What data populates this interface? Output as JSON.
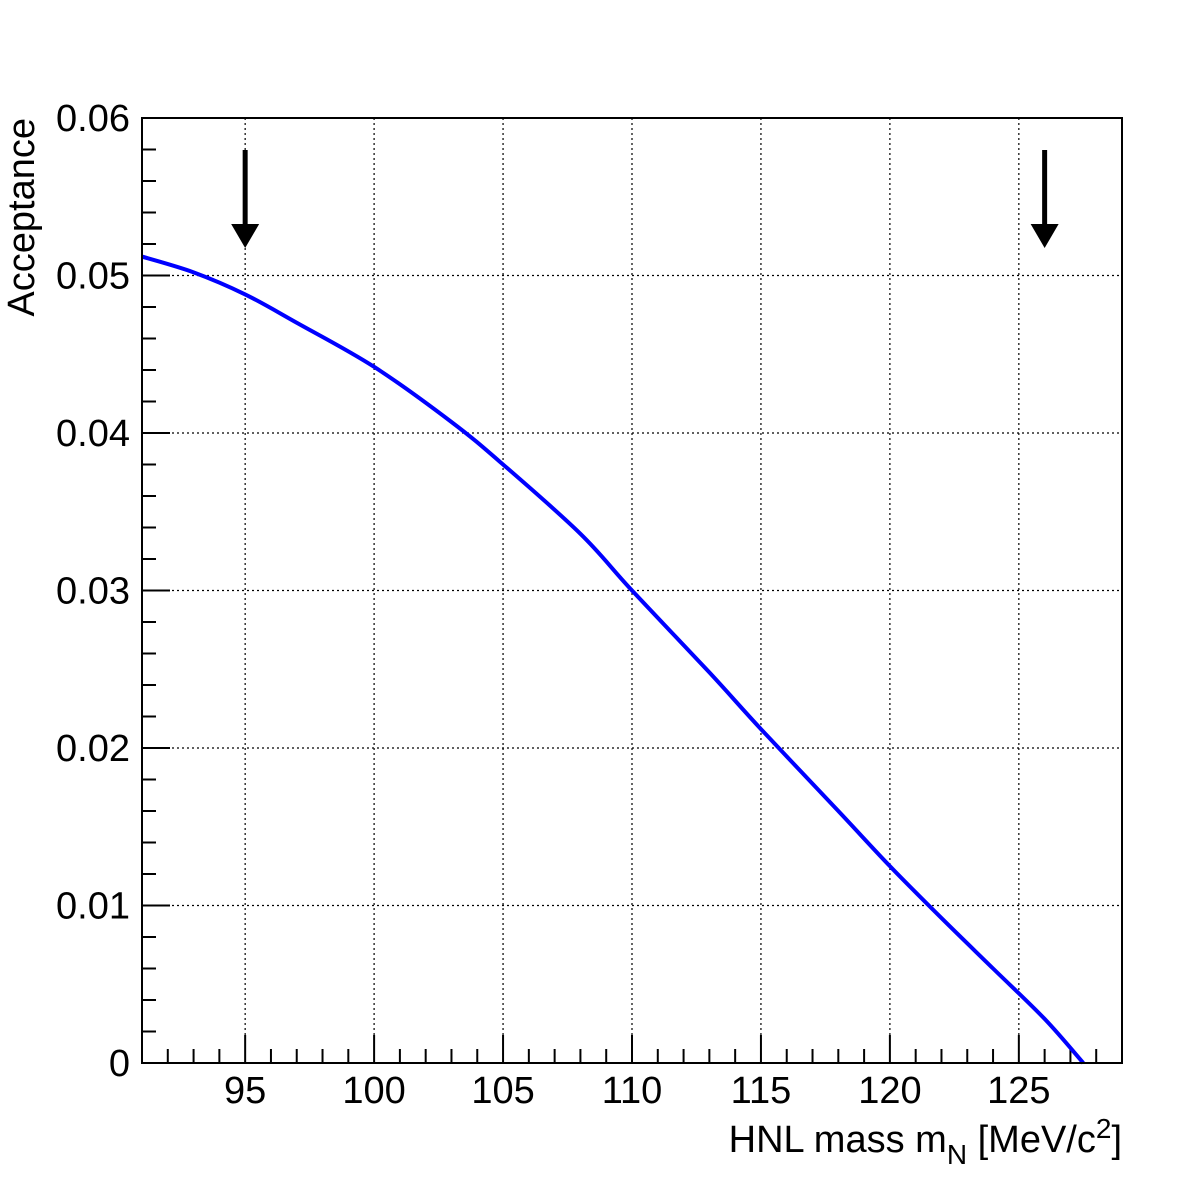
{
  "chart_data": {
    "type": "line",
    "title": "",
    "xlabel": "HNL mass m",
    "xlabel_subscript": "N",
    "xlabel_unit_prefix": " [MeV/c",
    "xlabel_unit_superscript": "2",
    "xlabel_unit_suffix": "]",
    "ylabel": "Acceptance",
    "xlim": [
      91.0,
      129.0
    ],
    "ylim": [
      0.0,
      0.06
    ],
    "grid": true,
    "x_ticks": [
      95,
      100,
      105,
      110,
      115,
      120,
      125
    ],
    "y_ticks": [
      0,
      0.01,
      0.02,
      0.03,
      0.04,
      0.05,
      0.06
    ],
    "y_tick_labels": [
      "0",
      "0.01",
      "0.02",
      "0.03",
      "0.04",
      "0.05",
      "0.06"
    ],
    "series": [
      {
        "color": "#0000ff",
        "x": [
          91.0,
          93.0,
          95.0,
          97.0,
          100.0,
          103.0,
          105.0,
          108.0,
          110.0,
          113.0,
          115.0,
          118.0,
          120.0,
          122.0,
          124.0,
          126.0,
          127.5
        ],
        "y": [
          0.0512,
          0.0502,
          0.0488,
          0.047,
          0.0442,
          0.0407,
          0.038,
          0.0336,
          0.03,
          0.0248,
          0.0212,
          0.016,
          0.0125,
          0.0092,
          0.006,
          0.0028,
          0.0
        ]
      }
    ],
    "markers": [
      {
        "x": 95.0,
        "symbol": "down-arrow",
        "color": "#000000"
      },
      {
        "x": 126.0,
        "symbol": "down-arrow",
        "color": "#000000"
      }
    ]
  }
}
